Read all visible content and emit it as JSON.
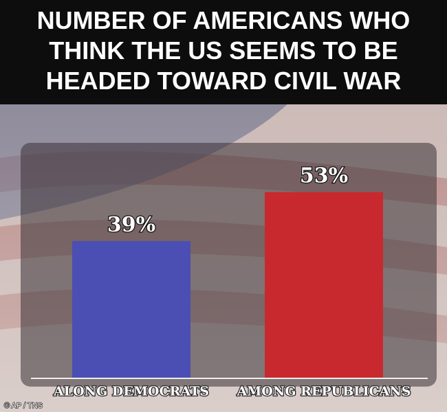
{
  "chart_data": {
    "type": "bar",
    "title": [
      "NUMBER OF AMERICANS WHO",
      "THINK THE US SEEMS TO BE",
      "HEADED TOWARD CIVIL WAR"
    ],
    "categories": [
      "ALONG DEMOCRATS",
      "AMONG REPUBLICANS"
    ],
    "values": [
      39,
      53
    ],
    "value_labels": [
      "39%",
      "53%"
    ],
    "colors": [
      "#4b4fb3",
      "#c8292e"
    ],
    "credit": "© AP / TNS"
  }
}
